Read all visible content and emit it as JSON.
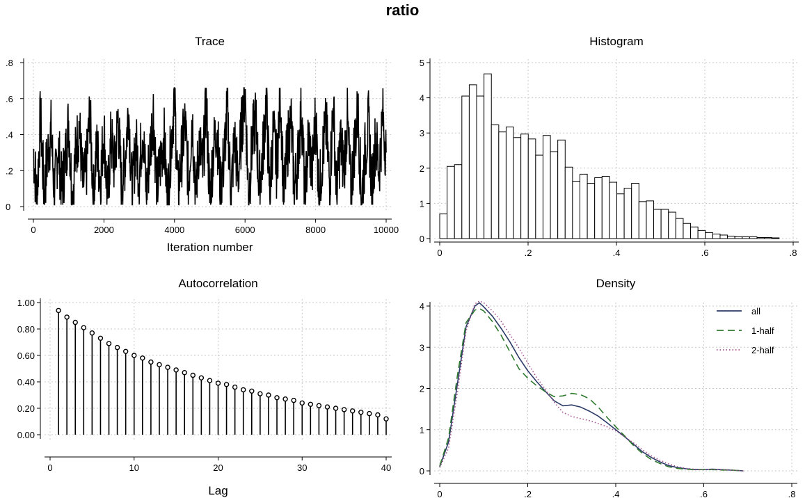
{
  "title": "ratio",
  "chart_data": [
    {
      "type": "line",
      "title": "Trace",
      "xlabel": "Iteration number",
      "ylabel": "",
      "xlim": [
        0,
        10000
      ],
      "ylim": [
        0,
        0.8
      ],
      "xticks": [
        0,
        2000,
        4000,
        6000,
        8000,
        10000
      ],
      "xtick_labels": [
        "0",
        "2000",
        "4000",
        "6000",
        "8000",
        "10000"
      ],
      "yticks": [
        0,
        0.2,
        0.4,
        0.6,
        0.8
      ],
      "ytick_labels": [
        "0",
        ".2",
        ".4",
        ".6",
        ".8"
      ],
      "grid": true,
      "series_color": "#000000",
      "x": [
        0,
        100,
        200,
        300,
        400,
        500,
        600,
        700,
        800,
        900,
        1000,
        1100,
        1200,
        1300,
        1400,
        1500,
        1600,
        1700,
        1800,
        1900,
        2000,
        2100,
        2200,
        2300,
        2400,
        2500,
        2600,
        2700,
        2800,
        2900,
        3000,
        3100,
        3200,
        3300,
        3400,
        3500,
        3600,
        3700,
        3800,
        3900,
        4000,
        4100,
        4200,
        4300,
        4400,
        4500,
        4600,
        4700,
        4800,
        4900,
        5000,
        5100,
        5200,
        5300,
        5400,
        5500,
        5600,
        5700,
        5800,
        5900,
        6000,
        6100,
        6200,
        6300,
        6400,
        6500,
        6600,
        6700,
        6800,
        6900,
        7000,
        7100,
        7200,
        7300,
        7400,
        7500,
        7600,
        7700,
        7800,
        7900,
        8000,
        8100,
        8200,
        8300,
        8400,
        8500,
        8600,
        8700,
        8800,
        8900,
        9000,
        9100,
        9200,
        9300,
        9400,
        9500,
        9600,
        9700,
        9800,
        9900,
        10000
      ],
      "values": [
        0.32,
        0.05,
        0.5,
        0.08,
        0.28,
        0.42,
        0.06,
        0.35,
        0.1,
        0.25,
        0.48,
        0.04,
        0.3,
        0.45,
        0.12,
        0.2,
        0.52,
        0.06,
        0.33,
        0.15,
        0.44,
        0.03,
        0.38,
        0.22,
        0.5,
        0.1,
        0.27,
        0.56,
        0.04,
        0.36,
        0.18,
        0.46,
        0.07,
        0.3,
        0.54,
        0.09,
        0.24,
        0.4,
        0.02,
        0.34,
        0.62,
        0.08,
        0.28,
        0.47,
        0.12,
        0.52,
        0.05,
        0.37,
        0.2,
        0.58,
        0.03,
        0.31,
        0.45,
        0.1,
        0.26,
        0.55,
        0.06,
        0.38,
        0.15,
        0.43,
        0.66,
        0.04,
        0.35,
        0.5,
        0.11,
        0.28,
        0.6,
        0.07,
        0.42,
        0.21,
        0.64,
        0.05,
        0.33,
        0.49,
        0.09,
        0.27,
        0.56,
        0.03,
        0.4,
        0.18,
        0.51,
        0.06,
        0.3,
        0.45,
        0.12,
        0.58,
        0.05,
        0.36,
        0.22,
        0.48,
        0.08,
        0.34,
        0.53,
        0.04,
        0.29,
        0.46,
        0.1,
        0.38,
        0.2,
        0.5,
        0.3
      ]
    },
    {
      "type": "bar",
      "title": "Histogram",
      "xlabel": "",
      "ylabel": "",
      "xlim": [
        0,
        0.8
      ],
      "ylim": [
        0,
        5
      ],
      "bin_width": 0.0167,
      "bin_start": 0.0,
      "xticks": [
        0,
        0.2,
        0.4,
        0.6,
        0.8
      ],
      "xtick_labels": [
        "0",
        ".2",
        ".4",
        ".6",
        ".8"
      ],
      "yticks": [
        0,
        1,
        2,
        3,
        4,
        5
      ],
      "ytick_labels": [
        "0",
        "1",
        "2",
        "3",
        "4",
        "5"
      ],
      "grid": true,
      "values": [
        0.7,
        2.05,
        2.1,
        4.05,
        4.37,
        4.05,
        4.68,
        3.23,
        3.03,
        3.17,
        2.87,
        2.97,
        2.83,
        2.37,
        2.93,
        2.47,
        2.8,
        2.03,
        1.63,
        1.83,
        1.57,
        1.73,
        1.77,
        1.6,
        1.27,
        1.43,
        1.57,
        1.05,
        1.07,
        0.83,
        0.83,
        0.75,
        0.57,
        0.43,
        0.33,
        0.23,
        0.17,
        0.13,
        0.1,
        0.07,
        0.05,
        0.05,
        0.05,
        0.03,
        0.03,
        0.02
      ]
    },
    {
      "type": "line",
      "title": "Autocorrelation",
      "xlabel": "Lag",
      "ylabel": "",
      "xlim": [
        0,
        40
      ],
      "ylim": [
        0,
        1.0
      ],
      "xticks": [
        0,
        10,
        20,
        30,
        40
      ],
      "xtick_labels": [
        "0",
        "10",
        "20",
        "30",
        "40"
      ],
      "yticks": [
        0,
        0.2,
        0.4,
        0.6,
        0.8,
        1.0
      ],
      "ytick_labels": [
        "0.00",
        "0.20",
        "0.40",
        "0.60",
        "0.80",
        "1.00"
      ],
      "grid": true,
      "style": "stem",
      "x": [
        1,
        2,
        3,
        4,
        5,
        6,
        7,
        8,
        9,
        10,
        11,
        12,
        13,
        14,
        15,
        16,
        17,
        18,
        19,
        20,
        21,
        22,
        23,
        24,
        25,
        26,
        27,
        28,
        29,
        30,
        31,
        32,
        33,
        34,
        35,
        36,
        37,
        38,
        39,
        40
      ],
      "values": [
        0.94,
        0.89,
        0.85,
        0.81,
        0.77,
        0.73,
        0.69,
        0.66,
        0.63,
        0.6,
        0.58,
        0.55,
        0.53,
        0.51,
        0.49,
        0.47,
        0.45,
        0.43,
        0.41,
        0.39,
        0.38,
        0.36,
        0.34,
        0.33,
        0.31,
        0.3,
        0.28,
        0.27,
        0.26,
        0.24,
        0.23,
        0.22,
        0.21,
        0.2,
        0.19,
        0.18,
        0.17,
        0.16,
        0.15,
        0.12
      ]
    },
    {
      "type": "line",
      "title": "Density",
      "xlabel": "",
      "ylabel": "",
      "xlim": [
        0,
        0.8
      ],
      "ylim": [
        0,
        4
      ],
      "xticks": [
        0,
        0.2,
        0.4,
        0.6,
        0.8
      ],
      "xtick_labels": [
        "0",
        ".2",
        ".4",
        ".6",
        ".8"
      ],
      "yticks": [
        0,
        1,
        2,
        3,
        4
      ],
      "ytick_labels": [
        "0",
        "1",
        "2",
        "3",
        "4"
      ],
      "grid": true,
      "legend_position": "top-right",
      "x": [
        0,
        0.02,
        0.04,
        0.06,
        0.08,
        0.09,
        0.1,
        0.12,
        0.14,
        0.16,
        0.18,
        0.2,
        0.22,
        0.24,
        0.26,
        0.28,
        0.3,
        0.32,
        0.34,
        0.36,
        0.38,
        0.4,
        0.42,
        0.44,
        0.46,
        0.48,
        0.5,
        0.52,
        0.54,
        0.56,
        0.58,
        0.6,
        0.62,
        0.64,
        0.66,
        0.69
      ],
      "series": [
        {
          "name": "all",
          "color": "#2b3a67",
          "dash": "",
          "values": [
            0.1,
            0.7,
            2.1,
            3.5,
            4.0,
            4.08,
            3.98,
            3.75,
            3.45,
            3.12,
            2.75,
            2.43,
            2.17,
            1.93,
            1.7,
            1.58,
            1.6,
            1.55,
            1.45,
            1.33,
            1.17,
            1.0,
            0.83,
            0.65,
            0.47,
            0.33,
            0.22,
            0.13,
            0.08,
            0.05,
            0.03,
            0.03,
            0.04,
            0.03,
            0.02,
            0.0
          ]
        },
        {
          "name": "1-half",
          "color": "#2f7a2f",
          "dash": "10,6",
          "values": [
            0.12,
            0.8,
            2.3,
            3.6,
            3.9,
            3.94,
            3.88,
            3.62,
            3.28,
            2.88,
            2.48,
            2.25,
            2.07,
            1.92,
            1.8,
            1.82,
            1.88,
            1.85,
            1.75,
            1.55,
            1.3,
            1.07,
            0.85,
            0.62,
            0.43,
            0.28,
            0.18,
            0.1,
            0.06,
            0.04,
            0.03,
            0.03,
            0.03,
            0.02,
            0.02,
            0.0
          ]
        },
        {
          "name": "2-half",
          "color": "#a0508c",
          "dash": "1.5,3",
          "values": [
            0.08,
            0.55,
            1.9,
            3.4,
            4.05,
            4.12,
            4.08,
            3.88,
            3.62,
            3.3,
            2.98,
            2.62,
            2.27,
            1.98,
            1.67,
            1.42,
            1.32,
            1.27,
            1.22,
            1.15,
            1.07,
            0.97,
            0.83,
            0.68,
            0.52,
            0.37,
            0.26,
            0.17,
            0.1,
            0.06,
            0.04,
            0.03,
            0.04,
            0.03,
            0.02,
            0.0
          ]
        }
      ]
    }
  ]
}
